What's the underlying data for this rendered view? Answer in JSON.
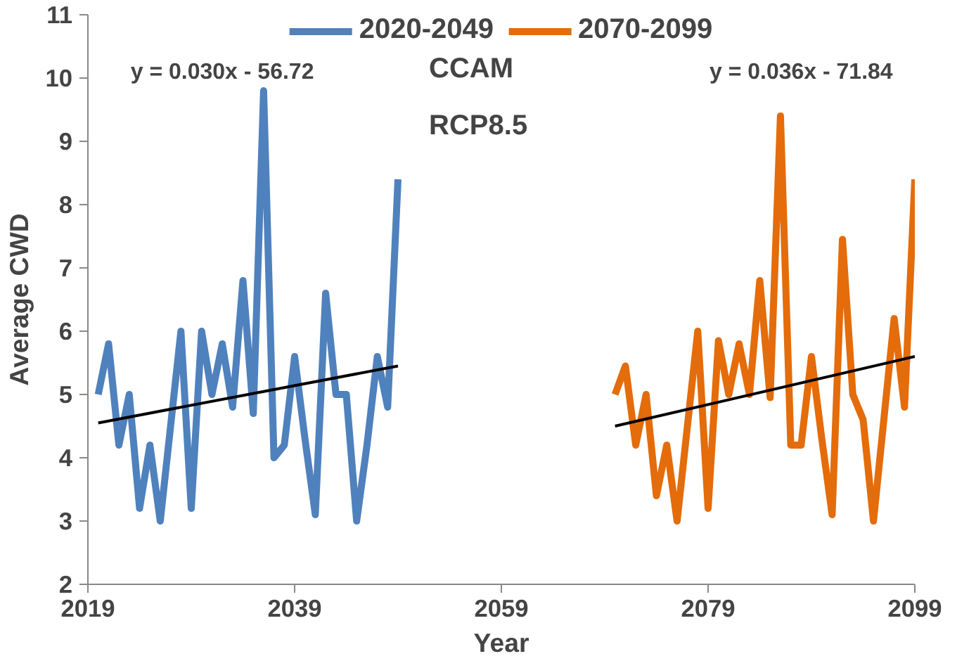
{
  "chart_data": {
    "type": "line",
    "xlabel": "Year",
    "ylabel": "Average CWD",
    "xlim": [
      2019,
      2099
    ],
    "xticks": [
      2019,
      2039,
      2059,
      2079,
      2099
    ],
    "ylim": [
      2,
      11
    ],
    "yticks": [
      2,
      3,
      4,
      5,
      6,
      7,
      8,
      9,
      10,
      11
    ],
    "grid": false,
    "legend": "top",
    "marker": "none",
    "line_style": "solid",
    "annotations": [
      "y = 0.030x - 56.72",
      "CCAM",
      "RCP8.5",
      "y = 0.036x - 71.84"
    ],
    "series": [
      {
        "name": "2020-2049",
        "color": "#4f81bd",
        "x": [
          2020,
          2021,
          2022,
          2023,
          2024,
          2025,
          2026,
          2027,
          2028,
          2029,
          2030,
          2031,
          2032,
          2033,
          2034,
          2035,
          2036,
          2037,
          2038,
          2039,
          2040,
          2041,
          2042,
          2043,
          2044,
          2045,
          2046,
          2047,
          2048,
          2049
        ],
        "values": [
          5.0,
          5.8,
          4.2,
          5.0,
          3.2,
          4.2,
          3.0,
          4.5,
          6.0,
          3.2,
          6.0,
          5.0,
          5.8,
          4.8,
          6.8,
          4.7,
          9.8,
          4.0,
          4.2,
          5.6,
          4.3,
          3.1,
          6.6,
          5.0,
          5.0,
          3.0,
          4.2,
          5.6,
          4.8,
          8.4
        ]
      },
      {
        "name": "2070-2099",
        "color": "#e46c0a",
        "x": [
          2070,
          2071,
          2072,
          2073,
          2074,
          2075,
          2076,
          2077,
          2078,
          2079,
          2080,
          2081,
          2082,
          2083,
          2084,
          2085,
          2086,
          2087,
          2088,
          2089,
          2090,
          2091,
          2092,
          2093,
          2094,
          2095,
          2096,
          2097,
          2098,
          2099
        ],
        "values": [
          5.0,
          5.45,
          4.2,
          5.0,
          3.4,
          4.2,
          3.0,
          4.5,
          6.0,
          3.2,
          5.85,
          5.0,
          5.8,
          5.0,
          6.8,
          4.95,
          9.4,
          4.2,
          4.2,
          5.6,
          4.3,
          3.1,
          7.45,
          5.0,
          4.6,
          3.0,
          4.6,
          6.2,
          4.8,
          8.4
        ]
      },
      {
        "type": "line",
        "color": "#000000",
        "x": [
          2020,
          2049
        ],
        "values": [
          4.55,
          5.45
        ]
      },
      {
        "type": "line",
        "color": "#000000",
        "x": [
          2070,
          2099
        ],
        "values": [
          4.5,
          5.6
        ]
      }
    ]
  }
}
